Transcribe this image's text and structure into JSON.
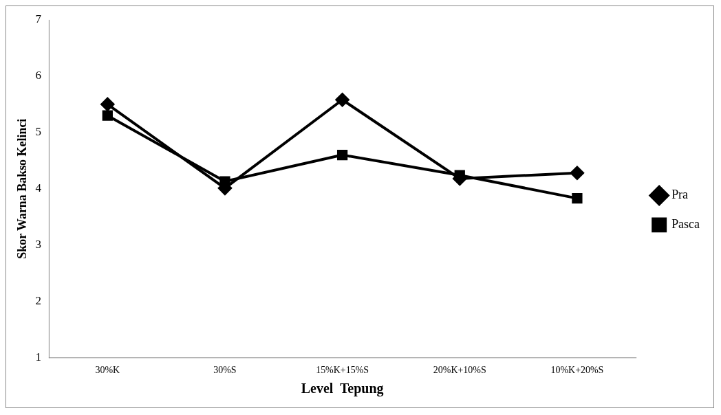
{
  "chart_data": {
    "type": "line",
    "xlabel": "Level  Tepung",
    "ylabel": "Skor Warna Bakso Kelinci",
    "categories": [
      "30%K",
      "30%S",
      "15%K+15%S",
      "20%K+10%S",
      "10%K+20%S"
    ],
    "series": [
      {
        "name": "Pra",
        "color": "#000000",
        "marker": "diamond",
        "values": [
          5.5,
          4.01,
          5.58,
          4.18,
          4.28
        ]
      },
      {
        "name": "Pasca",
        "color": "#000000",
        "marker": "square",
        "values": [
          5.3,
          4.13,
          4.6,
          4.24,
          3.83
        ]
      }
    ],
    "ylim": [
      1,
      7
    ],
    "yticks": [
      1,
      2,
      3,
      4,
      5,
      6,
      7
    ],
    "grid": false,
    "legend": "right",
    "line_style": "solid"
  }
}
